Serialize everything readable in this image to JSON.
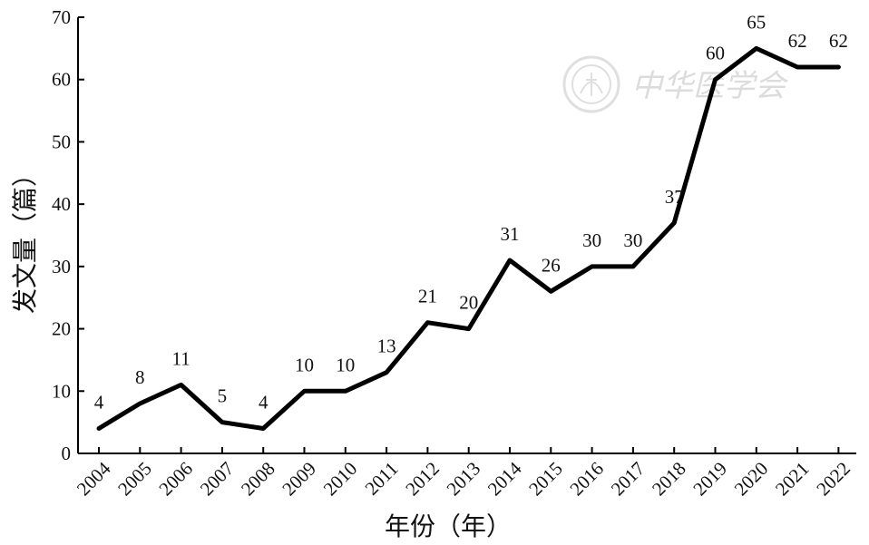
{
  "chart_data": {
    "type": "line",
    "title": "",
    "xlabel": "年份（年）",
    "ylabel": "发文量（篇）",
    "x": [
      "2004",
      "2005",
      "2006",
      "2007",
      "2008",
      "2009",
      "2010",
      "2011",
      "2012",
      "2013",
      "2014",
      "2015",
      "2016",
      "2017",
      "2018",
      "2019",
      "2020",
      "2021",
      "2022"
    ],
    "series": [
      {
        "values": [
          4,
          8,
          11,
          5,
          4,
          10,
          10,
          13,
          21,
          20,
          31,
          26,
          30,
          30,
          37,
          60,
          65,
          62,
          62
        ],
        "color": "#000000"
      }
    ],
    "ylim": [
      0,
      70
    ],
    "yticks": [
      0,
      10,
      20,
      30,
      40,
      50,
      60,
      70
    ],
    "grid": false,
    "data_labels": true
  },
  "watermark": {
    "text": "中华医学会",
    "color": "#d9d9d9"
  }
}
